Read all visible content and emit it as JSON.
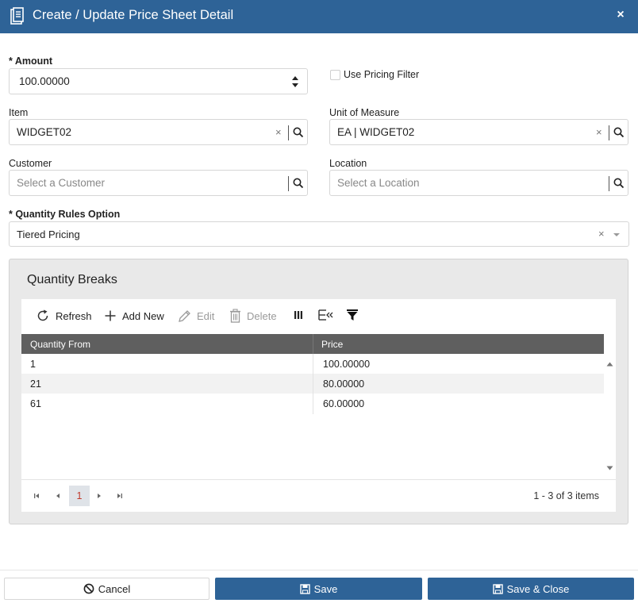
{
  "window": {
    "title": "Create / Update Price Sheet Detail",
    "close_label": "×"
  },
  "form": {
    "amount": {
      "label": "* Amount",
      "value": "100.00000"
    },
    "use_pricing_filter": {
      "label": "Use Pricing Filter",
      "checked": false
    },
    "item": {
      "label": "Item",
      "value": "WIDGET02",
      "clear": "×"
    },
    "uom": {
      "label": "Unit of Measure",
      "value": "EA | WIDGET02",
      "clear": "×"
    },
    "customer": {
      "label": "Customer",
      "placeholder": "Select a Customer"
    },
    "location": {
      "label": "Location",
      "placeholder": "Select a Location"
    },
    "quantity_rules": {
      "label": "* Quantity Rules Option",
      "value": "Tiered Pricing",
      "clear": "×"
    }
  },
  "quantity_breaks": {
    "title": "Quantity Breaks",
    "toolbar": {
      "refresh": "Refresh",
      "add_new": "Add New",
      "edit": "Edit",
      "delete": "Delete"
    },
    "columns": [
      "Quantity From",
      "Price"
    ],
    "rows": [
      {
        "qty": "1",
        "price": "100.00000"
      },
      {
        "qty": "21",
        "price": "80.00000"
      },
      {
        "qty": "61",
        "price": "60.00000"
      }
    ],
    "pager": {
      "current_page": "1",
      "info": "1 - 3 of 3 items"
    }
  },
  "footer": {
    "cancel": "Cancel",
    "save": "Save",
    "save_close": "Save & Close"
  },
  "colors": {
    "header": "#2e6397",
    "grid_header": "#5f5f5f",
    "active_page": "#c0392b"
  }
}
